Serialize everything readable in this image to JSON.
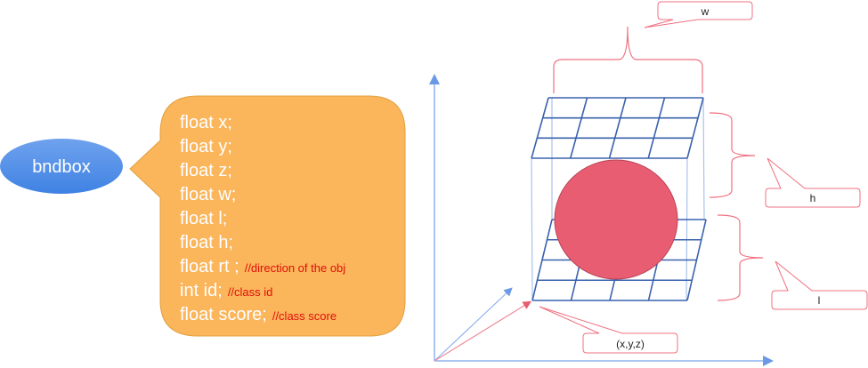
{
  "entity": {
    "label": "bndbox"
  },
  "fields": [
    {
      "code": "float x;",
      "comment": ""
    },
    {
      "code": "float y;",
      "comment": ""
    },
    {
      "code": "float z;",
      "comment": ""
    },
    {
      "code": "float w;",
      "comment": ""
    },
    {
      "code": "float l;",
      "comment": ""
    },
    {
      "code": "float h;",
      "comment": ""
    },
    {
      "code": "float rt ;",
      "comment": "//direction of the obj"
    },
    {
      "code": "int id;",
      "comment": "//class id"
    },
    {
      "code": "float score;",
      "comment": "//class score"
    }
  ],
  "callouts": {
    "w": "w",
    "h": "h",
    "l": "l",
    "origin": "(x,y,z)"
  },
  "colors": {
    "entity": "#4f8fe8",
    "bubble": "#fbb55a",
    "grid": "#3a62ad",
    "axis": "#6a9ae6",
    "object": "#e85d72",
    "annotation": "#f07080"
  }
}
